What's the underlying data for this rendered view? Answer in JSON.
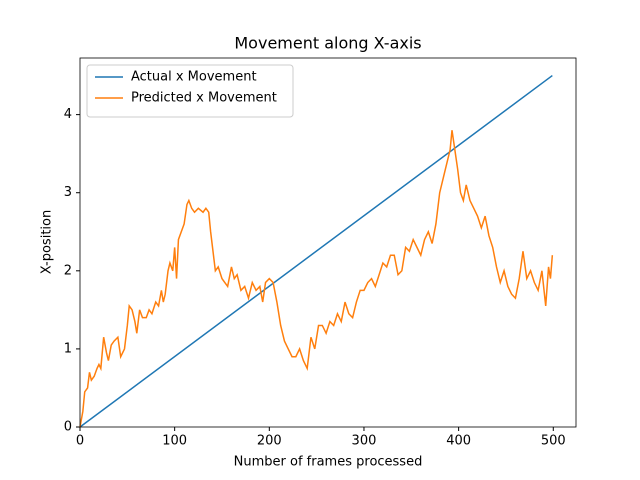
{
  "chart_data": {
    "type": "line",
    "title": "Movement along X-axis",
    "x_label": "Number of frames processed",
    "y_label": "X-position",
    "xlim": [
      0,
      524
    ],
    "ylim": [
      0,
      4.725
    ],
    "xticks": [
      0,
      100,
      200,
      300,
      400,
      500
    ],
    "yticks": [
      0,
      1,
      2,
      3,
      4
    ],
    "legend": "upper left",
    "series": [
      {
        "name": "Actual x Movement",
        "color": "#1f77b4",
        "x": [
          0,
          499
        ],
        "values": [
          0,
          4.5
        ]
      },
      {
        "name": "Predicted x Movement",
        "color": "#ff7f0e",
        "x": [
          0,
          3,
          5,
          8,
          10,
          12,
          15,
          18,
          20,
          22,
          25,
          28,
          30,
          33,
          36,
          40,
          43,
          47,
          50,
          52,
          55,
          58,
          60,
          63,
          66,
          70,
          73,
          76,
          80,
          83,
          86,
          88,
          90,
          93,
          95,
          98,
          100,
          102,
          104,
          107,
          110,
          113,
          115,
          118,
          121,
          125,
          130,
          133,
          136,
          138,
          140,
          143,
          146,
          150,
          153,
          156,
          160,
          163,
          166,
          170,
          174,
          178,
          182,
          186,
          190,
          193,
          196,
          200,
          204,
          208,
          212,
          216,
          220,
          224,
          228,
          232,
          236,
          240,
          244,
          248,
          252,
          256,
          260,
          264,
          268,
          272,
          276,
          280,
          284,
          288,
          292,
          296,
          300,
          304,
          308,
          312,
          316,
          320,
          324,
          328,
          332,
          336,
          340,
          344,
          348,
          352,
          356,
          360,
          364,
          368,
          372,
          376,
          380,
          384,
          388,
          391,
          393,
          396,
          399,
          402,
          405,
          408,
          412,
          416,
          420,
          424,
          428,
          432,
          436,
          440,
          444,
          448,
          452,
          456,
          460,
          464,
          468,
          472,
          476,
          480,
          484,
          488,
          492,
          495,
          497,
          499
        ],
        "values": [
          0,
          0.2,
          0.45,
          0.5,
          0.7,
          0.6,
          0.65,
          0.75,
          0.8,
          0.75,
          1.15,
          0.95,
          0.85,
          1.05,
          1.1,
          1.15,
          0.9,
          1.0,
          1.3,
          1.55,
          1.5,
          1.35,
          1.2,
          1.5,
          1.4,
          1.4,
          1.5,
          1.45,
          1.6,
          1.55,
          1.75,
          1.6,
          1.7,
          2.0,
          2.1,
          2.0,
          2.3,
          1.9,
          2.4,
          2.5,
          2.6,
          2.85,
          2.9,
          2.8,
          2.75,
          2.8,
          2.75,
          2.8,
          2.75,
          2.5,
          2.3,
          2.0,
          2.05,
          1.9,
          1.85,
          1.8,
          2.05,
          1.9,
          1.95,
          1.75,
          1.8,
          1.65,
          1.85,
          1.75,
          1.8,
          1.6,
          1.85,
          1.9,
          1.85,
          1.6,
          1.3,
          1.1,
          1.0,
          0.9,
          0.9,
          1.0,
          0.85,
          0.75,
          1.15,
          1.0,
          1.3,
          1.3,
          1.2,
          1.35,
          1.3,
          1.45,
          1.35,
          1.6,
          1.45,
          1.4,
          1.6,
          1.75,
          1.75,
          1.85,
          1.9,
          1.8,
          1.95,
          2.1,
          2.05,
          2.2,
          2.2,
          1.95,
          2.0,
          2.3,
          2.25,
          2.4,
          2.3,
          2.2,
          2.4,
          2.5,
          2.35,
          2.6,
          3.0,
          3.2,
          3.4,
          3.55,
          3.8,
          3.55,
          3.3,
          3.0,
          2.9,
          3.1,
          2.9,
          2.8,
          2.7,
          2.55,
          2.7,
          2.45,
          2.3,
          2.05,
          1.85,
          2.0,
          1.8,
          1.7,
          1.65,
          1.9,
          2.25,
          1.9,
          2.0,
          1.85,
          1.75,
          2.0,
          1.55,
          2.05,
          1.9,
          2.2
        ]
      }
    ]
  }
}
